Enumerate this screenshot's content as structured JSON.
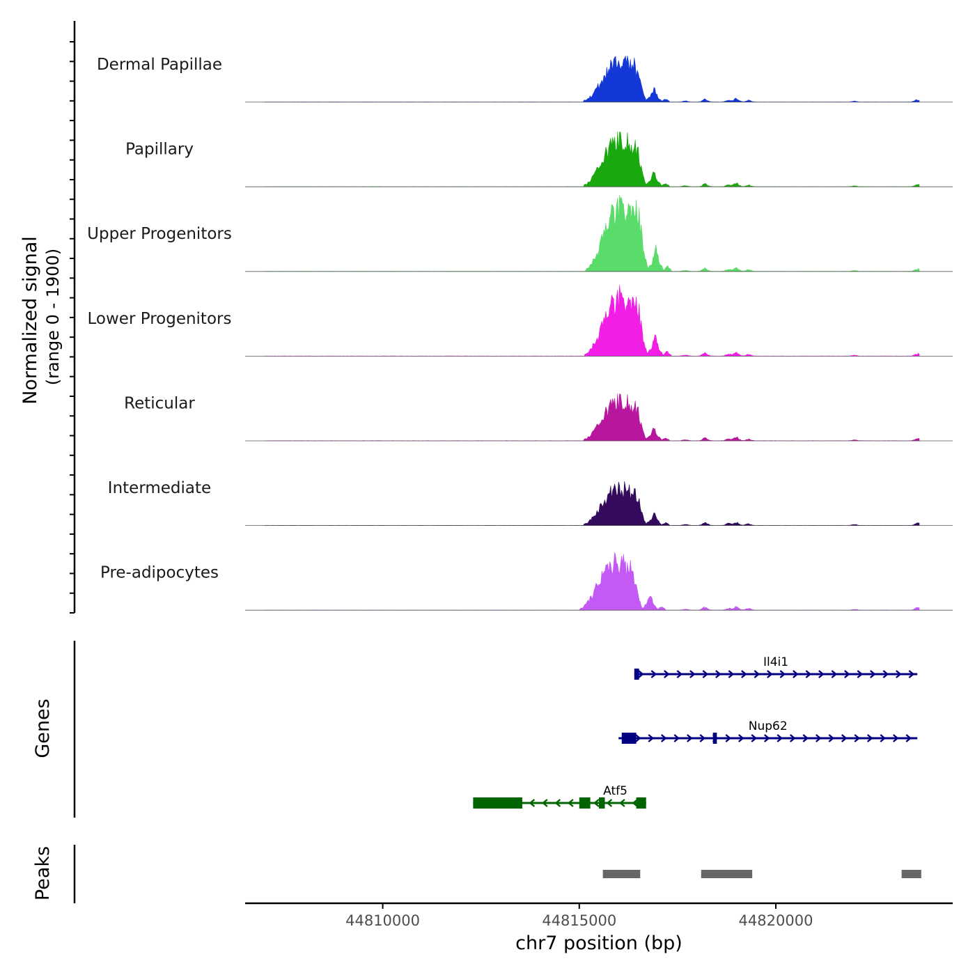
{
  "chart_data": {
    "type": "area",
    "ylabel_line1": "Normalized signal",
    "ylabel_line2": "(range 0 - 1900)",
    "y_range": [
      0,
      1900
    ],
    "xlabel": "chr7 position (bp)",
    "x_range": [
      44806500,
      44824500
    ],
    "x_ticks": [
      44810000,
      44815000,
      44820000
    ],
    "x_tick_labels": [
      "44810000",
      "44815000",
      "44820000"
    ],
    "peak_shape": [
      [
        44815100,
        30
      ],
      [
        44815200,
        60
      ],
      [
        44815300,
        150
      ],
      [
        44815400,
        260
      ],
      [
        44815500,
        420
      ],
      [
        44815600,
        560
      ],
      [
        44815700,
        720
      ],
      [
        44815800,
        850
      ],
      [
        44815900,
        900
      ],
      [
        44816000,
        980
      ],
      [
        44816100,
        870
      ],
      [
        44816200,
        990
      ],
      [
        44816300,
        860
      ],
      [
        44816400,
        960
      ],
      [
        44816500,
        700
      ],
      [
        44816600,
        280
      ],
      [
        44816700,
        40
      ],
      [
        44816800,
        120
      ],
      [
        44816900,
        330
      ],
      [
        44817000,
        120
      ],
      [
        44817100,
        20
      ],
      [
        44817200,
        70
      ],
      [
        44817300,
        20
      ]
    ],
    "minor_bumps": [
      [
        44818200,
        70
      ],
      [
        44818800,
        50
      ],
      [
        44819000,
        80
      ],
      [
        44819300,
        40
      ],
      [
        44817700,
        25
      ],
      [
        44822000,
        20
      ],
      [
        44823600,
        60
      ]
    ],
    "series": [
      {
        "name": "Dermal Papillae",
        "color": "#1438d8",
        "scale": 1.0,
        "shift": 0
      },
      {
        "name": "Papillary",
        "color": "#1aa80f",
        "scale": 1.17,
        "shift": 0
      },
      {
        "name": "Upper Progenitors",
        "color": "#5adc6a",
        "scale": 1.7,
        "shift": 50
      },
      {
        "name": "Lower Progenitors",
        "color": "#f21ee6",
        "scale": 1.5,
        "shift": 30
      },
      {
        "name": "Reticular",
        "color": "#b8169e",
        "scale": 1.0,
        "shift": 0
      },
      {
        "name": "Intermediate",
        "color": "#330a5c",
        "scale": 0.95,
        "shift": 0
      },
      {
        "name": "Pre-adipocytes",
        "color": "#c45af5",
        "scale": 1.2,
        "shift": -100
      }
    ],
    "genes_label": "Genes",
    "genes": [
      {
        "name": "Il4i1",
        "start": 44816400,
        "end": 44823600,
        "strand": "+",
        "color": "#000080",
        "exons": [
          [
            44816400,
            44816520
          ]
        ]
      },
      {
        "name": "Nup62",
        "start": 44816000,
        "end": 44823600,
        "strand": "+",
        "color": "#000080",
        "exons": [
          [
            44816080,
            44816450
          ],
          [
            44818400,
            44818500
          ]
        ]
      },
      {
        "name": "Atf5",
        "start": 44812300,
        "end": 44816700,
        "strand": "-",
        "color": "#006400",
        "exons": [
          [
            44812300,
            44813550
          ],
          [
            44815000,
            44815280
          ],
          [
            44815500,
            44815650
          ],
          [
            44816450,
            44816700
          ]
        ]
      }
    ],
    "peaks_label": "Peaks",
    "peaks": [
      [
        44815600,
        44816550
      ],
      [
        44818100,
        44819400
      ],
      [
        44823200,
        44823700
      ]
    ],
    "peak_color": "#666666"
  }
}
